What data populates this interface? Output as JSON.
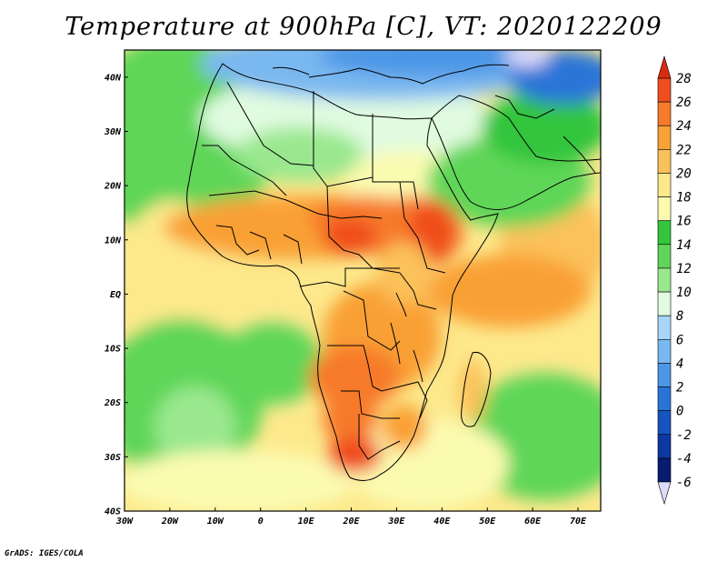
{
  "title": "Temperature at 900hPa [C], VT: 2020122209",
  "credit": "GrADS: IGES/COLA",
  "map": {
    "region": "Africa and surrounding oceans",
    "lon_range": [
      -30,
      75
    ],
    "lat_range": [
      -40,
      45
    ],
    "lat_ticks": [
      {
        "value": 40,
        "label": "40N"
      },
      {
        "value": 30,
        "label": "30N"
      },
      {
        "value": 20,
        "label": "20N"
      },
      {
        "value": 10,
        "label": "10N"
      },
      {
        "value": 0,
        "label": "EQ"
      },
      {
        "value": -10,
        "label": "10S"
      },
      {
        "value": -20,
        "label": "20S"
      },
      {
        "value": -30,
        "label": "30S"
      },
      {
        "value": -40,
        "label": "40S"
      }
    ],
    "lon_ticks": [
      {
        "value": -30,
        "label": "30W"
      },
      {
        "value": -20,
        "label": "20W"
      },
      {
        "value": -10,
        "label": "10W"
      },
      {
        "value": 0,
        "label": "0"
      },
      {
        "value": 10,
        "label": "10E"
      },
      {
        "value": 20,
        "label": "20E"
      },
      {
        "value": 30,
        "label": "30E"
      },
      {
        "value": 40,
        "label": "40E"
      },
      {
        "value": 50,
        "label": "50E"
      },
      {
        "value": 60,
        "label": "60E"
      },
      {
        "value": 70,
        "label": "70E"
      }
    ]
  },
  "colorbar": {
    "units": "C",
    "levels": [
      {
        "value": "28",
        "color": "#d72a10"
      },
      {
        "value": "26",
        "color": "#f04e1e"
      },
      {
        "value": "24",
        "color": "#f77a2a"
      },
      {
        "value": "22",
        "color": "#f9a036"
      },
      {
        "value": "20",
        "color": "#fbc15a"
      },
      {
        "value": "18",
        "color": "#fde98c"
      },
      {
        "value": "16",
        "color": "#fbfbb0"
      },
      {
        "value": "14",
        "color": "#33c53c"
      },
      {
        "value": "12",
        "color": "#5fd659"
      },
      {
        "value": "10",
        "color": "#9ae88e"
      },
      {
        "value": "8",
        "color": "#e0fbe0"
      },
      {
        "value": "6",
        "color": "#a8d6fa"
      },
      {
        "value": "4",
        "color": "#7ab8f0"
      },
      {
        "value": "2",
        "color": "#4c96e6"
      },
      {
        "value": "0",
        "color": "#2a74d8"
      },
      {
        "value": "-2",
        "color": "#1654c0"
      },
      {
        "value": "-4",
        "color": "#0c38a0"
      },
      {
        "value": "-6",
        "color": "#081c70"
      }
    ],
    "below_min_color": "#dcdcfa"
  }
}
